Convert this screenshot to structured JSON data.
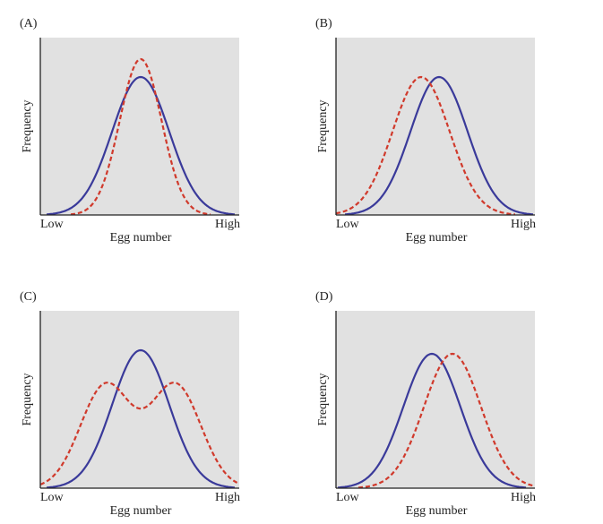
{
  "panels": [
    {
      "label": "(A)",
      "y_axis": "Frequency",
      "x_axis": "Egg number",
      "x_low": "Low",
      "x_high": "High"
    },
    {
      "label": "(B)",
      "y_axis": "Frequency",
      "x_axis": "Egg number",
      "x_low": "Low",
      "x_high": "High"
    },
    {
      "label": "(C)",
      "y_axis": "Frequency",
      "x_axis": "Egg number",
      "x_low": "Low",
      "x_high": "High"
    },
    {
      "label": "(D)",
      "y_axis": "Frequency",
      "x_axis": "Egg number",
      "x_low": "Low",
      "x_high": "High"
    }
  ]
}
